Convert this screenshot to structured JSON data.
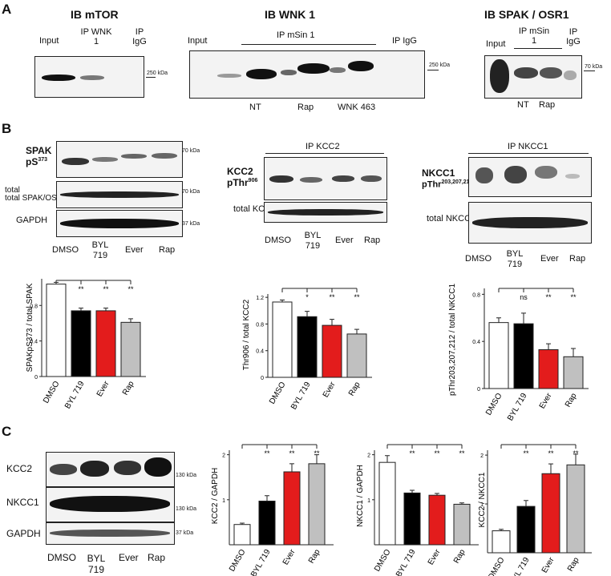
{
  "panels": {
    "A": "A",
    "B": "B",
    "C": "C"
  },
  "panelA": {
    "mtor": {
      "title": "IB mTOR",
      "lanes": [
        "Input",
        "IP WNK 1",
        "IP IgG"
      ],
      "marker": "250 kDa"
    },
    "wnk1": {
      "title": "IB WNK 1",
      "input": "Input",
      "ip_msin1": "IP mSin 1",
      "ip_igg": "IP IgG",
      "conditions": [
        "NT",
        "Rap",
        "WNK 463"
      ],
      "marker": "250 kDa"
    },
    "spak": {
      "title": "IB SPAK / OSR1",
      "input": "Input",
      "ip_msin1": "IP mSin 1",
      "ip_igg": "IP IgG",
      "conditions": [
        "NT",
        "Rap"
      ],
      "marker": "70 kDa"
    }
  },
  "panelB": {
    "lanes": [
      "DMSO",
      "BYL 719",
      "Ever",
      "Rap"
    ],
    "spak_labels": {
      "pspak_name": "SPAK",
      "pspak_site": "pS",
      "pspak_sup": "373",
      "total": "total SPAK/OSR1",
      "gapdh": "GAPDH"
    },
    "kcc2_labels": {
      "ip": "IP KCC2",
      "p_name": "KCC2",
      "p_site": "pThr",
      "p_sup": "906",
      "total": "total KCC2"
    },
    "nkcc1_labels": {
      "ip": "IP NKCC1",
      "p_name": "NKCC1",
      "p_site": "pThr",
      "p_sup": "203,207,212",
      "total": "total NKCC1"
    },
    "markers": {
      "m70": "70 kDa",
      "m37": "37 kDa"
    }
  },
  "panelC": {
    "lanes": [
      "DMSO",
      "BYL 719",
      "Ever",
      "Rap"
    ],
    "rows": [
      "KCC2",
      "NKCC1",
      "GAPDH"
    ],
    "markers": [
      "130 kDa",
      "130 kDa",
      "37 kDa"
    ]
  },
  "colors": {
    "DMSO": "#ffffff",
    "BYL": "#000000",
    "Ever": "#e31c1c",
    "Rap": "#c0c0c0"
  },
  "chart_data": [
    {
      "type": "bar",
      "categories": [
        "DMSO",
        "BYL 719",
        "Ever",
        "Rap"
      ],
      "values": [
        1.04,
        0.74,
        0.74,
        0.61
      ],
      "errors": [
        0.02,
        0.03,
        0.03,
        0.04
      ],
      "ylabel": "SPAKpS373 / total SPAK",
      "ylim": [
        0,
        1.1
      ],
      "yticks": [
        "0",
        "0.4",
        "0.8"
      ],
      "significance": [
        "",
        "**",
        "**",
        "**"
      ]
    },
    {
      "type": "bar",
      "categories": [
        "DMSO",
        "BYL 719",
        "Ever",
        "Rap"
      ],
      "values": [
        1.13,
        0.91,
        0.78,
        0.65
      ],
      "errors": [
        0.03,
        0.08,
        0.09,
        0.07
      ],
      "ylabel": "Thr906 / total KCC2",
      "ylim": [
        0,
        1.25
      ],
      "yticks": [
        "0",
        "0.4",
        "0.8",
        "1.2"
      ],
      "significance": [
        "",
        "*",
        "**",
        "**"
      ]
    },
    {
      "type": "bar",
      "categories": [
        "DMSO",
        "BYL 719",
        "Ever",
        "Rap"
      ],
      "values": [
        0.56,
        0.55,
        0.33,
        0.27
      ],
      "errors": [
        0.04,
        0.09,
        0.05,
        0.07
      ],
      "ylabel": "pThr203,207,212 / total NKCC1",
      "ylim": [
        0,
        0.85
      ],
      "yticks": [
        "0",
        "0.4",
        "0.8"
      ],
      "significance": [
        "",
        "ns",
        "**",
        "**"
      ]
    },
    {
      "type": "bar",
      "categories": [
        "DMSO",
        "BYL 719",
        "Ever",
        "Rap"
      ],
      "values": [
        0.45,
        0.97,
        1.62,
        1.8
      ],
      "errors": [
        0.03,
        0.12,
        0.18,
        0.2
      ],
      "ylabel": "KCC2 / GAPDH",
      "ylim": [
        0,
        2.1
      ],
      "yticks": [
        "1",
        "2"
      ],
      "significance": [
        "",
        "**",
        "**",
        "**"
      ]
    },
    {
      "type": "bar",
      "categories": [
        "DMSO",
        "BYL 719",
        "Ever",
        "Rap"
      ],
      "values": [
        1.83,
        1.15,
        1.1,
        0.9
      ],
      "errors": [
        0.15,
        0.06,
        0.04,
        0.03
      ],
      "ylabel": "NKCC1 / GAPDH",
      "ylim": [
        0,
        2.1
      ],
      "yticks": [
        "1",
        "2"
      ],
      "significance": [
        "",
        "**",
        "**",
        "**"
      ]
    },
    {
      "type": "bar",
      "categories": [
        "DMSO",
        "BYL 719",
        "Ever",
        "Rap"
      ],
      "values": [
        0.45,
        0.95,
        1.62,
        1.8
      ],
      "errors": [
        0.03,
        0.12,
        0.2,
        0.22
      ],
      "ylabel": "KCC2 / NKCC1",
      "ylim": [
        0,
        2.1
      ],
      "yticks": [
        "1",
        "2"
      ],
      "significance": [
        "",
        "**",
        "**",
        "**"
      ]
    }
  ]
}
